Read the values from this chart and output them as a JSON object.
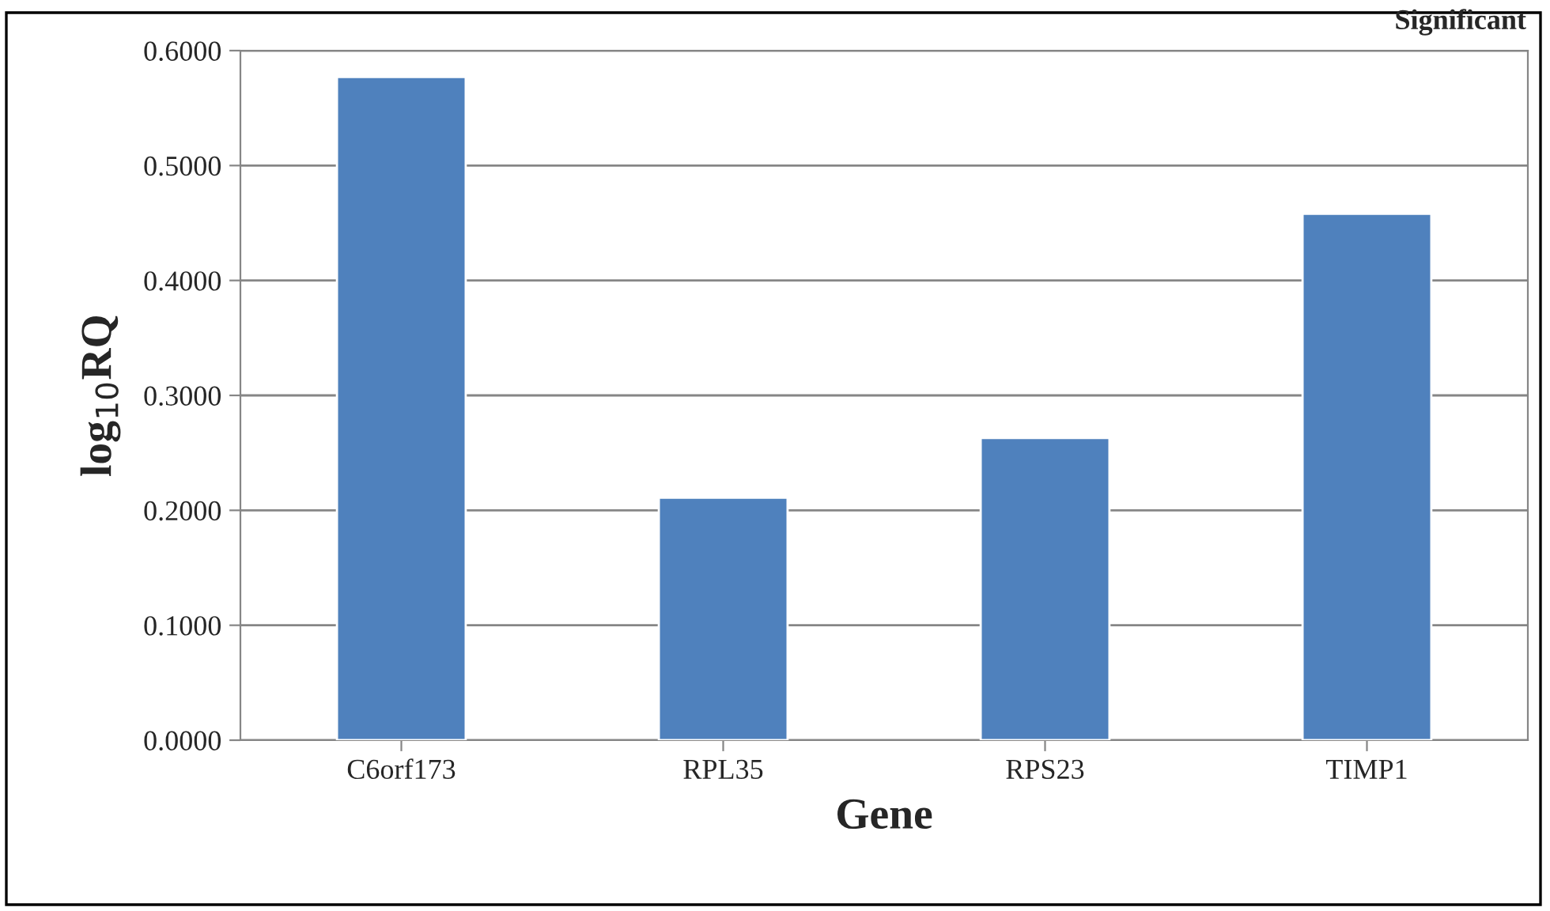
{
  "chart_data": {
    "type": "bar",
    "categories": [
      "C6orf173",
      "RPL35",
      "RPS23",
      "TIMP1"
    ],
    "values": [
      0.577,
      0.211,
      0.263,
      0.458
    ],
    "color": "#4f81bd",
    "xlabel": "Gene",
    "ylabel": "log$_{10}$RQ",
    "ylim": [
      0,
      0.6
    ],
    "yticks": [
      {
        "value": 0,
        "label": "0.0000"
      },
      {
        "value": 0.1,
        "label": "0.1000"
      },
      {
        "value": 0.2,
        "label": "0.2000"
      },
      {
        "value": 0.3,
        "label": "0.3000"
      },
      {
        "value": 0.4,
        "label": "0.4000"
      },
      {
        "value": 0.5,
        "label": "0.5000"
      },
      {
        "value": 0.6,
        "label": "0.6000"
      }
    ],
    "grid": "y",
    "annotations": [
      "Significant"
    ]
  }
}
